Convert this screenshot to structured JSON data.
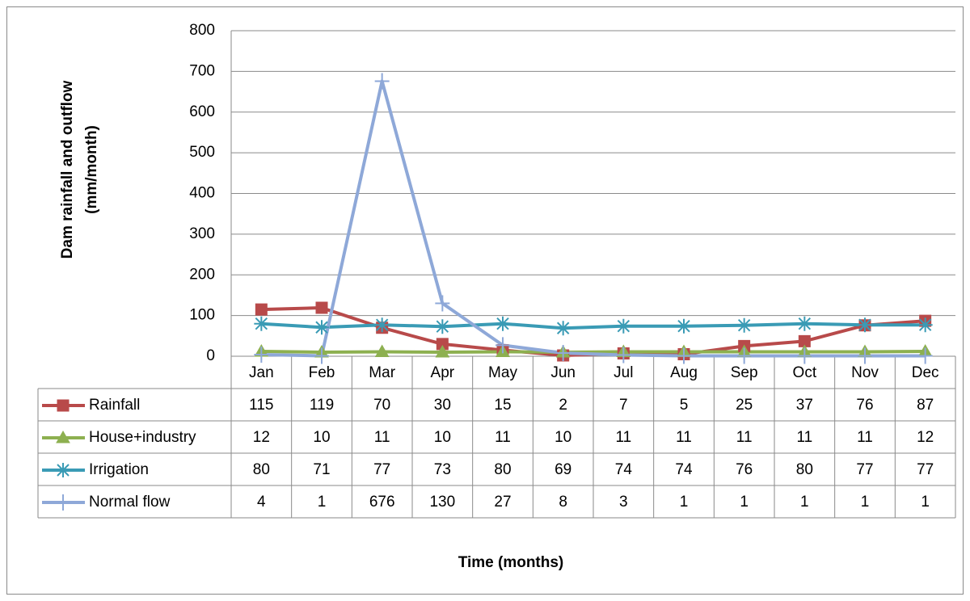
{
  "chart_data": {
    "type": "line",
    "x_label": "Time (months)",
    "y_label": [
      "Dam rainfall and outflow",
      "(mm/month)"
    ],
    "categories": [
      "Jan",
      "Feb",
      "Mar",
      "Apr",
      "May",
      "Jun",
      "Jul",
      "Aug",
      "Sep",
      "Oct",
      "Nov",
      "Dec"
    ],
    "series": [
      {
        "name": "Rainfall",
        "color": "#b84a4a",
        "marker": "square",
        "values": [
          115,
          119,
          70,
          30,
          15,
          2,
          7,
          5,
          25,
          37,
          76,
          87
        ]
      },
      {
        "name": "House+industry",
        "color": "#8db050",
        "marker": "triangle",
        "values": [
          12,
          10,
          11,
          10,
          11,
          10,
          11,
          11,
          11,
          11,
          11,
          12
        ]
      },
      {
        "name": "Irrigation",
        "color": "#3a9bb5",
        "marker": "asterisk",
        "values": [
          80,
          71,
          77,
          73,
          80,
          69,
          74,
          74,
          76,
          80,
          77,
          77
        ]
      },
      {
        "name": "Normal flow",
        "color": "#8ea8d8",
        "marker": "plus",
        "values": [
          4,
          1,
          676,
          130,
          27,
          8,
          3,
          1,
          1,
          1,
          1,
          1
        ]
      }
    ],
    "ylim": [
      0,
      800
    ],
    "yticks": [
      0,
      100,
      200,
      300,
      400,
      500,
      600,
      700,
      800
    ],
    "grid": true,
    "data_table": true
  }
}
